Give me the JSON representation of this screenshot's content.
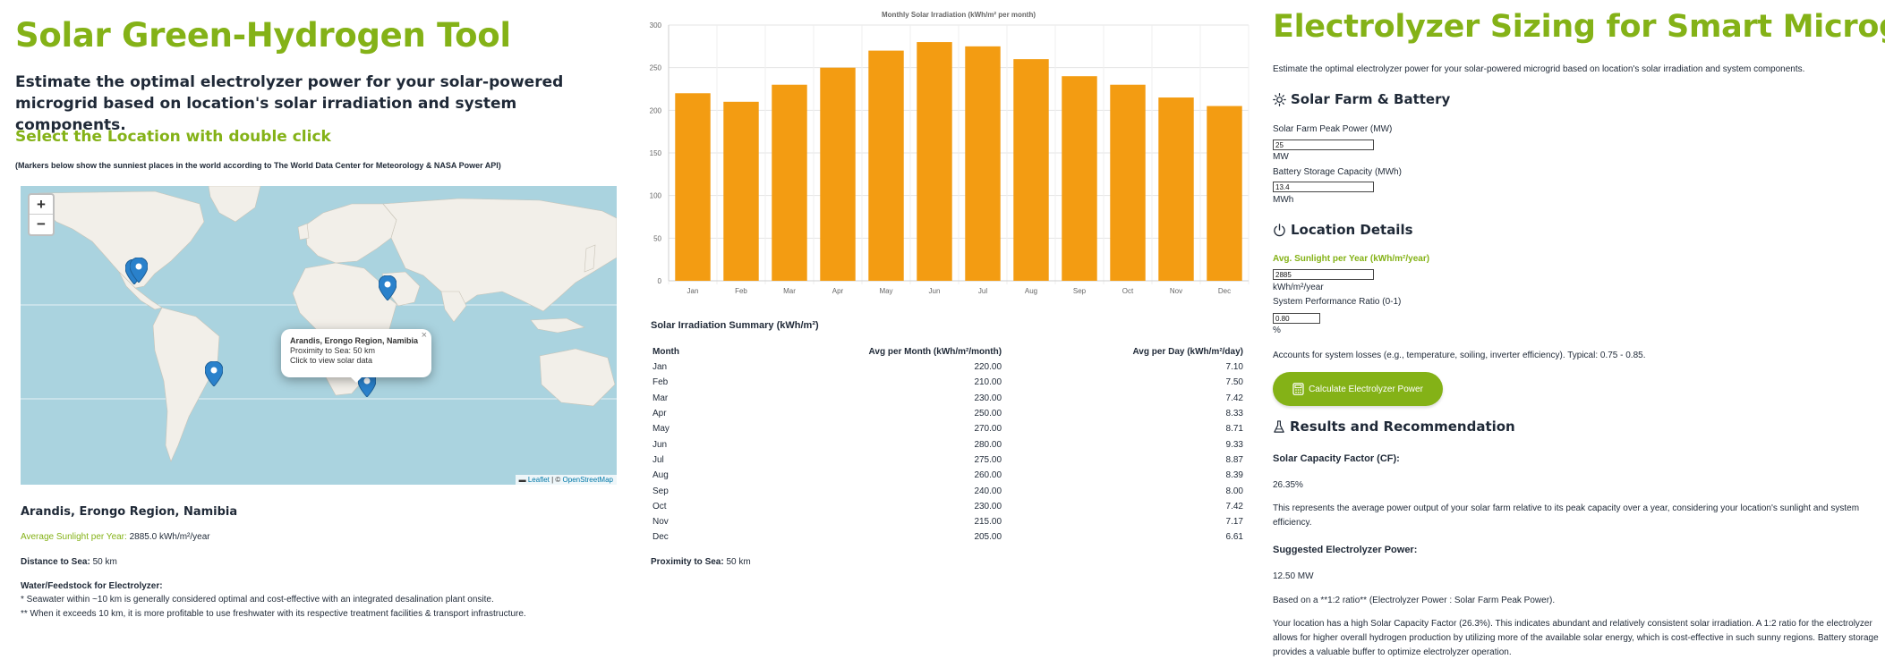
{
  "left": {
    "title": "Solar Green-Hydrogen Tool",
    "intro": "Estimate the optimal electrolyzer power for your solar-powered microgrid based on location's solar irradiation and system components.",
    "select_title": "Select the Location with double click",
    "markers_note": "(Markers below show the sunniest places in the world according to The World Data Center for Meteorology & NASA Power API)",
    "map": {
      "zoom_in": "+",
      "zoom_out": "−",
      "popup": {
        "title": "Arandis, Erongo Region, Namibia",
        "proximity": "Proximity to Sea: 50 km",
        "hint": "Click to view solar data",
        "close": "×"
      },
      "attribution_leaflet": "Leaflet",
      "attribution_sep": " | © ",
      "attribution_osm": "OpenStreetMap"
    },
    "location_name": "Arandis, Erongo Region, Namibia",
    "sunlight_label": "Average Sunlight per Year:",
    "sunlight_value": "2885.0 kWh/m²/year",
    "distance_label": "Distance to Sea:",
    "distance_value": "50 km",
    "water_title": "Water/Feedstock for Electrolyzer:",
    "water_note1": "* Seawater within ~10 km is generally considered optimal and cost-effective with an integrated desalination plant onsite.",
    "water_note2": "** When it exceeds 10 km, it is more profitable to use freshwater with its respective treatment facilities & transport infrastructure."
  },
  "chart_data": {
    "type": "bar",
    "title": "Monthly Solar Irradiation (kWh/m² per month)",
    "categories": [
      "Jan",
      "Feb",
      "Mar",
      "Apr",
      "May",
      "Jun",
      "Jul",
      "Aug",
      "Sep",
      "Oct",
      "Nov",
      "Dec"
    ],
    "values": [
      220,
      210,
      230,
      250,
      270,
      280,
      275,
      260,
      240,
      230,
      215,
      205
    ],
    "ylim": [
      0,
      300
    ],
    "yticks": [
      0,
      50,
      100,
      150,
      200,
      250,
      300
    ],
    "xlabel": "",
    "ylabel": "",
    "grid": true,
    "color": "#f39c12"
  },
  "summary": {
    "title": "Solar Irradiation Summary (kWh/m²)",
    "headers": [
      "Month",
      "Avg per Month (kWh/m²/month)",
      "Avg per Day (kWh/m²/day)"
    ],
    "rows": [
      [
        "Jan",
        "220.00",
        "7.10"
      ],
      [
        "Feb",
        "210.00",
        "7.50"
      ],
      [
        "Mar",
        "230.00",
        "7.42"
      ],
      [
        "Apr",
        "250.00",
        "8.33"
      ],
      [
        "May",
        "270.00",
        "8.71"
      ],
      [
        "Jun",
        "280.00",
        "9.33"
      ],
      [
        "Jul",
        "275.00",
        "8.87"
      ],
      [
        "Aug",
        "260.00",
        "8.39"
      ],
      [
        "Sep",
        "240.00",
        "8.00"
      ],
      [
        "Oct",
        "230.00",
        "7.42"
      ],
      [
        "Nov",
        "215.00",
        "7.17"
      ],
      [
        "Dec",
        "205.00",
        "6.61"
      ]
    ],
    "proximity_label": "Proximity to Sea:",
    "proximity_value": "50 km"
  },
  "right": {
    "title": "Electrolyzer Sizing for Smart Microgrids",
    "intro": "Estimate the optimal electrolyzer power for your solar-powered microgrid based on location's solar irradiation and system components.",
    "solar_section": "Solar Farm & Battery",
    "peak_label": "Solar Farm Peak Power (MW)",
    "peak_value": "25",
    "peak_unit": "MW",
    "battery_label": "Battery Storage Capacity (MWh)",
    "battery_value": "13.4",
    "battery_unit": "MWh",
    "location_section": "Location Details",
    "sunlight_label": "Avg. Sunlight per Year (kWh/m²/year)",
    "sunlight_value": "2885",
    "sunlight_unit": "kWh/m²/year",
    "ratio_label": "System Performance Ratio (0-1)",
    "ratio_value": "0.80",
    "ratio_unit": "%",
    "ratio_note": "Accounts for system losses (e.g., temperature, soiling, inverter efficiency). Typical: 0.75 - 0.85.",
    "calc_button": "Calculate Electrolyzer Power",
    "results_section": "Results and Recommendation",
    "cf_label": "Solar Capacity Factor (CF):",
    "cf_value": "26.35%",
    "cf_note": "This represents the average power output of your solar farm relative to its peak capacity over a year, considering your location's sunlight and system efficiency.",
    "elec_label": "Suggested Electrolyzer Power:",
    "elec_value": "12.50 MW",
    "ratio_basis": "Based on a **1:2 ratio** (Electrolyzer Power : Solar Farm Peak Power).",
    "recommendation": "Your location has a high Solar Capacity Factor (26.3%). This indicates abundant and relatively consistent solar irradiation. A 1:2 ratio for the electrolyzer allows for higher overall hydrogen production by utilizing more of the available solar energy, which is cost-effective in such sunny regions. Battery storage provides a valuable buffer to optimize electrolyzer operation."
  }
}
